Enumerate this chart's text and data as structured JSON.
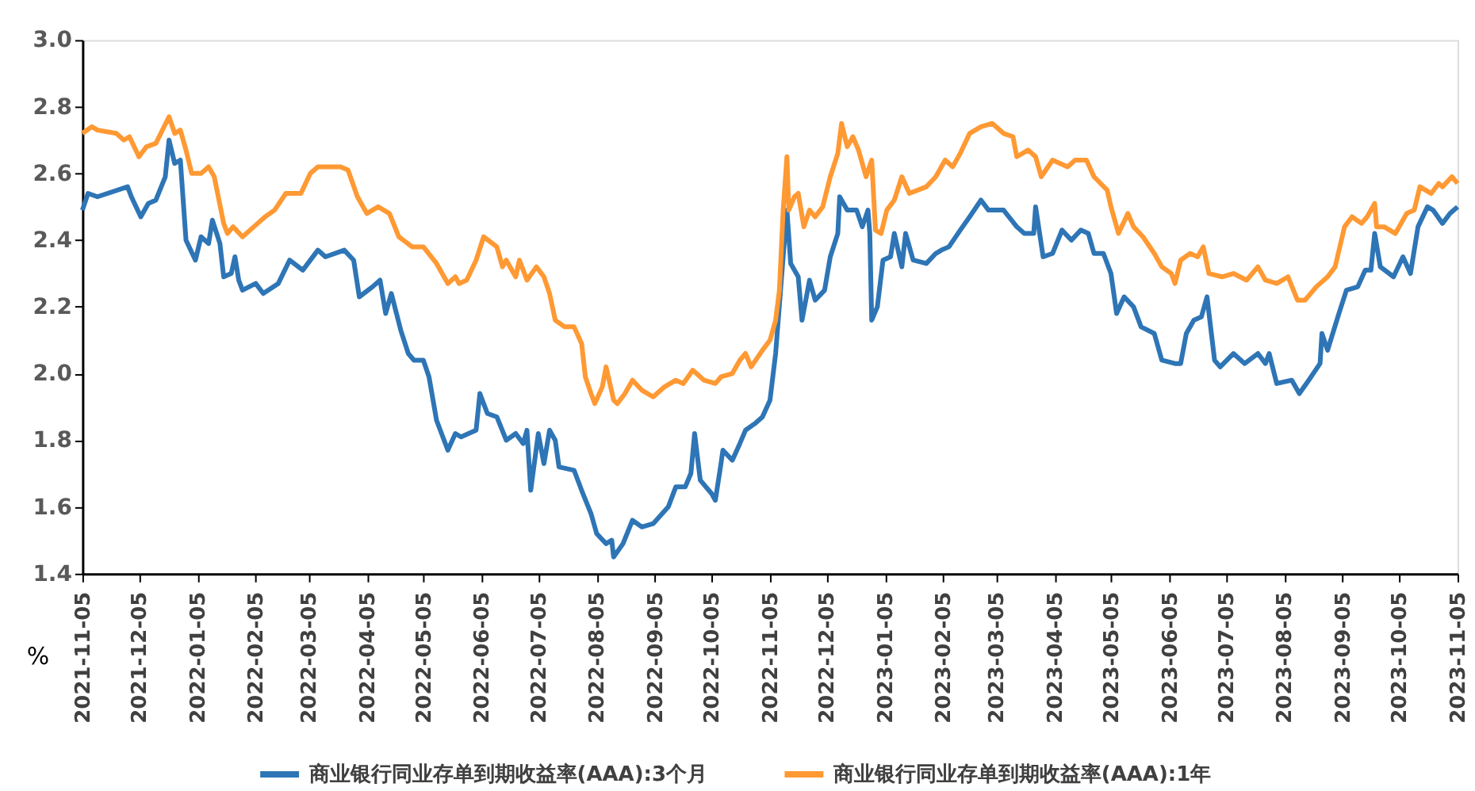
{
  "chart_data": {
    "type": "line",
    "legend": "bottom",
    "grid": false,
    "marker": "none",
    "line_style": "solid",
    "annotations": [
      "%"
    ],
    "xlim": [
      "2021-11-05",
      "2023-11-05"
    ],
    "xticks": [
      "2021-11-05",
      "2021-12-05",
      "2022-01-05",
      "2022-02-05",
      "2022-03-05",
      "2022-04-05",
      "2022-05-05",
      "2022-06-05",
      "2022-07-05",
      "2022-08-05",
      "2022-09-05",
      "2022-10-05",
      "2022-11-05",
      "2022-12-05",
      "2023-01-05",
      "2023-02-05",
      "2023-03-05",
      "2023-04-05",
      "2023-05-05",
      "2023-06-05",
      "2023-07-05",
      "2023-08-05",
      "2023-09-05",
      "2023-10-05",
      "2023-11-05"
    ],
    "ylim": [
      1.4,
      3.0
    ],
    "yticks": [
      1.4,
      1.6,
      1.8,
      {
        "value": 2.0,
        "label": "2.0"
      },
      2.2,
      2.4,
      2.6,
      2.8,
      {
        "value": 3.0,
        "label": "3.0"
      }
    ],
    "series": [
      {
        "name": "商业银行同业存单到期收益率(AAA):3个月",
        "color": "#2e75b6",
        "x": [
          "2021-11-05",
          "2021-11-08",
          "2021-11-13",
          "2021-11-29",
          "2021-12-01",
          "2021-12-06",
          "2021-12-10",
          "2021-12-14",
          "2021-12-19",
          "2021-12-21",
          "2021-12-24",
          "2021-12-27",
          "2021-12-30",
          "2022-01-04",
          "2022-01-07",
          "2022-01-11",
          "2022-01-13",
          "2022-01-17",
          "2022-01-19",
          "2022-01-23",
          "2022-01-25",
          "2022-01-27",
          "2022-01-29",
          "2022-02-05",
          "2022-02-09",
          "2022-02-17",
          "2022-02-23",
          "2022-03-02",
          "2022-03-10",
          "2022-03-14",
          "2022-03-24",
          "2022-03-29",
          "2022-04-01",
          "2022-04-08",
          "2022-04-12",
          "2022-04-15",
          "2022-04-18",
          "2022-04-23",
          "2022-04-27",
          "2022-04-30",
          "2022-05-05",
          "2022-05-08",
          "2022-05-12",
          "2022-05-18",
          "2022-05-22",
          "2022-05-25",
          "2022-06-02",
          "2022-06-04",
          "2022-06-08",
          "2022-06-13",
          "2022-06-18",
          "2022-06-23",
          "2022-06-27",
          "2022-06-29",
          "2022-07-01",
          "2022-07-05",
          "2022-07-08",
          "2022-07-11",
          "2022-07-14",
          "2022-07-16",
          "2022-07-24",
          "2022-07-28",
          "2022-08-02",
          "2022-08-05",
          "2022-08-10",
          "2022-08-13",
          "2022-08-14",
          "2022-08-19",
          "2022-08-24",
          "2022-08-29",
          "2022-09-04",
          "2022-09-12",
          "2022-09-16",
          "2022-09-21",
          "2022-09-24",
          "2022-09-26",
          "2022-09-29",
          "2022-10-05",
          "2022-10-07",
          "2022-10-10",
          "2022-10-11",
          "2022-10-16",
          "2022-10-20",
          "2022-10-23",
          "2022-10-28",
          "2022-11-01",
          "2022-11-05",
          "2022-11-08",
          "2022-11-12",
          "2022-11-14",
          "2022-11-16",
          "2022-11-20",
          "2022-11-22",
          "2022-11-26",
          "2022-11-29",
          "2022-12-04",
          "2022-12-07",
          "2022-12-11",
          "2022-12-12",
          "2022-12-16",
          "2022-12-21",
          "2022-12-24",
          "2022-12-27",
          "2022-12-28",
          "2022-12-29",
          "2023-01-01",
          "2023-01-04",
          "2023-01-08",
          "2023-01-10",
          "2023-01-14",
          "2023-01-16",
          "2023-01-20",
          "2023-01-27",
          "2023-02-01",
          "2023-02-04",
          "2023-02-08",
          "2023-02-14",
          "2023-02-19",
          "2023-02-25",
          "2023-03-01",
          "2023-03-09",
          "2023-03-16",
          "2023-03-20",
          "2023-03-25",
          "2023-03-26",
          "2023-03-30",
          "2023-04-04",
          "2023-04-09",
          "2023-04-14",
          "2023-04-19",
          "2023-04-23",
          "2023-04-26",
          "2023-05-01",
          "2023-05-05",
          "2023-05-08",
          "2023-05-12",
          "2023-05-17",
          "2023-05-21",
          "2023-05-28",
          "2023-06-01",
          "2023-06-08",
          "2023-06-11",
          "2023-06-14",
          "2023-06-18",
          "2023-06-22",
          "2023-06-25",
          "2023-06-29",
          "2023-07-02",
          "2023-07-09",
          "2023-07-15",
          "2023-07-22",
          "2023-07-26",
          "2023-07-28",
          "2023-08-01",
          "2023-08-09",
          "2023-08-13",
          "2023-08-18",
          "2023-08-24",
          "2023-08-25",
          "2023-08-28",
          "2023-09-03",
          "2023-09-07",
          "2023-09-13",
          "2023-09-17",
          "2023-09-20",
          "2023-09-22",
          "2023-09-25",
          "2023-10-02",
          "2023-10-07",
          "2023-10-11",
          "2023-10-15",
          "2023-10-20",
          "2023-10-23",
          "2023-10-28",
          "2023-11-01",
          "2023-11-05"
        ],
        "values": [
          2.49,
          2.54,
          2.53,
          2.56,
          2.53,
          2.47,
          2.51,
          2.52,
          2.59,
          2.7,
          2.63,
          2.64,
          2.4,
          2.34,
          2.41,
          2.39,
          2.46,
          2.39,
          2.29,
          2.3,
          2.35,
          2.28,
          2.25,
          2.27,
          2.24,
          2.27,
          2.34,
          2.31,
          2.37,
          2.35,
          2.37,
          2.34,
          2.23,
          2.26,
          2.28,
          2.18,
          2.24,
          2.13,
          2.06,
          2.04,
          2.04,
          1.99,
          1.86,
          1.77,
          1.82,
          1.81,
          1.83,
          1.94,
          1.88,
          1.87,
          1.8,
          1.82,
          1.79,
          1.83,
          1.65,
          1.82,
          1.73,
          1.83,
          1.8,
          1.72,
          1.71,
          1.65,
          1.58,
          1.52,
          1.49,
          1.5,
          1.45,
          1.49,
          1.56,
          1.54,
          1.55,
          1.6,
          1.66,
          1.66,
          1.7,
          1.82,
          1.68,
          1.64,
          1.62,
          1.73,
          1.77,
          1.74,
          1.79,
          1.83,
          1.85,
          1.87,
          1.92,
          2.06,
          2.35,
          2.49,
          2.33,
          2.29,
          2.16,
          2.28,
          2.22,
          2.25,
          2.35,
          2.42,
          2.53,
          2.49,
          2.49,
          2.44,
          2.49,
          2.42,
          2.16,
          2.2,
          2.34,
          2.35,
          2.42,
          2.32,
          2.42,
          2.34,
          2.33,
          2.36,
          2.37,
          2.38,
          2.43,
          2.47,
          2.52,
          2.49,
          2.49,
          2.44,
          2.42,
          2.42,
          2.5,
          2.35,
          2.36,
          2.43,
          2.4,
          2.43,
          2.42,
          2.36,
          2.36,
          2.3,
          2.18,
          2.23,
          2.2,
          2.14,
          2.12,
          2.04,
          2.03,
          2.03,
          2.12,
          2.16,
          2.17,
          2.23,
          2.04,
          2.02,
          2.06,
          2.03,
          2.06,
          2.03,
          2.06,
          1.97,
          1.98,
          1.94,
          1.98,
          2.03,
          2.12,
          2.07,
          2.18,
          2.25,
          2.26,
          2.31,
          2.31,
          2.42,
          2.32,
          2.29,
          2.35,
          2.3,
          2.44,
          2.5,
          2.49,
          2.45,
          2.48,
          2.5
        ]
      },
      {
        "name": "商业银行同业存单到期收益率(AAA):1年",
        "color": "#ff9933",
        "x": [
          "2021-11-05",
          "2021-11-10",
          "2021-11-13",
          "2021-11-23",
          "2021-11-27",
          "2021-11-30",
          "2021-12-05",
          "2021-12-09",
          "2021-12-14",
          "2021-12-21",
          "2021-12-24",
          "2021-12-27",
          "2021-12-30",
          "2022-01-02",
          "2022-01-07",
          "2022-01-11",
          "2022-01-14",
          "2022-01-19",
          "2022-01-21",
          "2022-01-24",
          "2022-01-29",
          "2022-02-04",
          "2022-02-10",
          "2022-02-15",
          "2022-02-21",
          "2022-03-01",
          "2022-03-06",
          "2022-03-10",
          "2022-03-14",
          "2022-03-22",
          "2022-03-26",
          "2022-03-31",
          "2022-04-05",
          "2022-04-11",
          "2022-04-17",
          "2022-04-22",
          "2022-04-29",
          "2022-05-05",
          "2022-05-12",
          "2022-05-18",
          "2022-05-22",
          "2022-05-24",
          "2022-05-28",
          "2022-06-02",
          "2022-06-06",
          "2022-06-13",
          "2022-06-16",
          "2022-06-18",
          "2022-06-23",
          "2022-06-25",
          "2022-06-29",
          "2022-07-04",
          "2022-07-08",
          "2022-07-11",
          "2022-07-14",
          "2022-07-19",
          "2022-07-24",
          "2022-07-28",
          "2022-07-30",
          "2022-08-02",
          "2022-08-04",
          "2022-08-08",
          "2022-08-10",
          "2022-08-14",
          "2022-08-16",
          "2022-08-20",
          "2022-08-24",
          "2022-08-29",
          "2022-09-04",
          "2022-09-10",
          "2022-09-16",
          "2022-09-20",
          "2022-09-25",
          "2022-10-01",
          "2022-10-07",
          "2022-10-10",
          "2022-10-16",
          "2022-10-20",
          "2022-10-23",
          "2022-10-26",
          "2022-11-01",
          "2022-11-05",
          "2022-11-08",
          "2022-11-10",
          "2022-11-12",
          "2022-11-14",
          "2022-11-15",
          "2022-11-18",
          "2022-11-20",
          "2022-11-23",
          "2022-11-26",
          "2022-11-29",
          "2022-12-03",
          "2022-12-07",
          "2022-12-11",
          "2022-12-13",
          "2022-12-16",
          "2022-12-19",
          "2022-12-22",
          "2022-12-26",
          "2022-12-29",
          "2022-12-31",
          "2023-01-03",
          "2023-01-06",
          "2023-01-10",
          "2023-01-14",
          "2023-01-18",
          "2023-01-27",
          "2023-02-01",
          "2023-02-06",
          "2023-02-10",
          "2023-02-14",
          "2023-02-19",
          "2023-02-25",
          "2023-03-03",
          "2023-03-09",
          "2023-03-14",
          "2023-03-16",
          "2023-03-22",
          "2023-03-26",
          "2023-03-29",
          "2023-04-04",
          "2023-04-12",
          "2023-04-16",
          "2023-04-22",
          "2023-04-26",
          "2023-05-03",
          "2023-05-05",
          "2023-05-09",
          "2023-05-14",
          "2023-05-17",
          "2023-05-22",
          "2023-05-28",
          "2023-06-01",
          "2023-06-06",
          "2023-06-08",
          "2023-06-11",
          "2023-06-16",
          "2023-06-20",
          "2023-06-23",
          "2023-06-26",
          "2023-07-03",
          "2023-07-09",
          "2023-07-16",
          "2023-07-22",
          "2023-07-26",
          "2023-08-01",
          "2023-08-07",
          "2023-08-12",
          "2023-08-16",
          "2023-08-22",
          "2023-08-28",
          "2023-09-01",
          "2023-09-06",
          "2023-09-10",
          "2023-09-15",
          "2023-09-18",
          "2023-09-22",
          "2023-09-23",
          "2023-09-27",
          "2023-10-03",
          "2023-10-09",
          "2023-10-13",
          "2023-10-16",
          "2023-10-22",
          "2023-10-26",
          "2023-10-28",
          "2023-11-02",
          "2023-11-05"
        ],
        "values": [
          2.72,
          2.74,
          2.73,
          2.72,
          2.7,
          2.71,
          2.65,
          2.68,
          2.69,
          2.77,
          2.72,
          2.73,
          2.67,
          2.6,
          2.6,
          2.62,
          2.59,
          2.45,
          2.42,
          2.44,
          2.41,
          2.44,
          2.47,
          2.49,
          2.54,
          2.54,
          2.6,
          2.62,
          2.62,
          2.62,
          2.61,
          2.53,
          2.48,
          2.5,
          2.48,
          2.41,
          2.38,
          2.38,
          2.33,
          2.27,
          2.29,
          2.27,
          2.28,
          2.34,
          2.41,
          2.38,
          2.32,
          2.34,
          2.29,
          2.34,
          2.28,
          2.32,
          2.29,
          2.24,
          2.16,
          2.14,
          2.14,
          2.09,
          1.99,
          1.94,
          1.91,
          1.96,
          2.02,
          1.92,
          1.91,
          1.94,
          1.98,
          1.95,
          1.93,
          1.96,
          1.98,
          1.97,
          2.01,
          1.98,
          1.97,
          1.99,
          2.0,
          2.04,
          2.06,
          2.02,
          2.07,
          2.1,
          2.16,
          2.25,
          2.49,
          2.65,
          2.49,
          2.53,
          2.54,
          2.44,
          2.49,
          2.47,
          2.5,
          2.59,
          2.66,
          2.75,
          2.68,
          2.71,
          2.67,
          2.59,
          2.64,
          2.43,
          2.42,
          2.49,
          2.52,
          2.59,
          2.54,
          2.56,
          2.59,
          2.64,
          2.62,
          2.66,
          2.72,
          2.74,
          2.75,
          2.72,
          2.71,
          2.65,
          2.67,
          2.65,
          2.59,
          2.64,
          2.62,
          2.64,
          2.64,
          2.59,
          2.55,
          2.5,
          2.42,
          2.48,
          2.44,
          2.41,
          2.36,
          2.32,
          2.3,
          2.27,
          2.34,
          2.36,
          2.35,
          2.38,
          2.3,
          2.29,
          2.3,
          2.28,
          2.32,
          2.28,
          2.27,
          2.29,
          2.22,
          2.22,
          2.26,
          2.29,
          2.32,
          2.44,
          2.47,
          2.45,
          2.47,
          2.51,
          2.44,
          2.44,
          2.42,
          2.48,
          2.49,
          2.56,
          2.54,
          2.57,
          2.56,
          2.59,
          2.57
        ]
      }
    ]
  }
}
